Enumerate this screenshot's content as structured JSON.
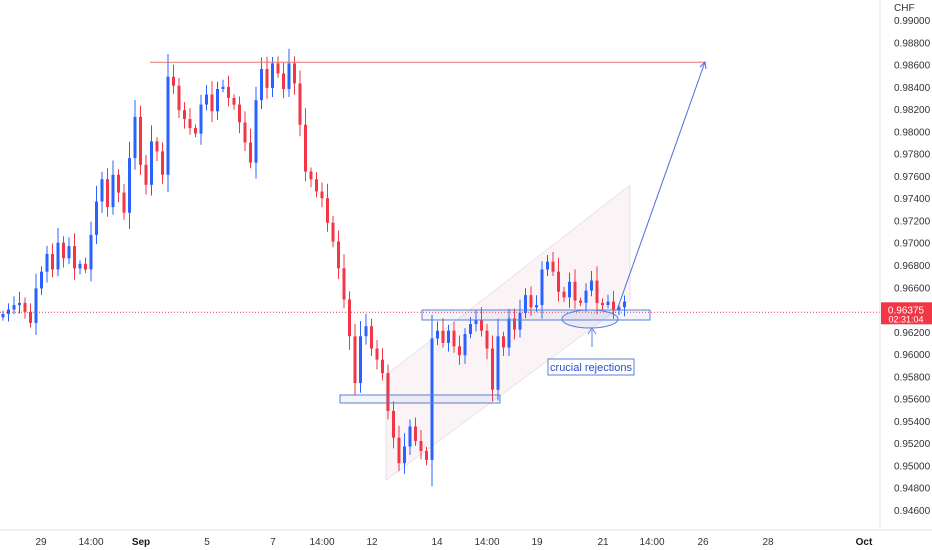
{
  "chart_data": {
    "type": "candlestick",
    "currency_label": "CHF",
    "colors": {
      "up": "#2962ff",
      "down": "#f23645",
      "resistance_line": "#e57373",
      "zone": "#5b7fd6",
      "projection": "#4a6fd4",
      "current_price": "#f23645"
    },
    "y_axis": {
      "min": 0.9448,
      "max": 0.991,
      "ticks": [
        "0.99000",
        "0.98800",
        "0.98600",
        "0.98400",
        "0.98200",
        "0.98000",
        "0.97800",
        "0.97600",
        "0.97400",
        "0.97200",
        "0.97000",
        "0.96800",
        "0.96600",
        "0.96400",
        "0.96200",
        "0.96000",
        "0.95800",
        "0.95600",
        "0.95400",
        "0.95200",
        "0.95000",
        "0.94800",
        "0.94600"
      ]
    },
    "x_axis": {
      "ticks": [
        {
          "label": "29",
          "bold": false
        },
        {
          "label": "14:00",
          "bold": false
        },
        {
          "label": "Sep",
          "bold": true
        },
        {
          "label": "5",
          "bold": false
        },
        {
          "label": "7",
          "bold": false
        },
        {
          "label": "14:00",
          "bold": false
        },
        {
          "label": "12",
          "bold": false
        },
        {
          "label": "14",
          "bold": false
        },
        {
          "label": "14:00",
          "bold": false
        },
        {
          "label": "19",
          "bold": false
        },
        {
          "label": "21",
          "bold": false
        },
        {
          "label": "14:00",
          "bold": false
        },
        {
          "label": "26",
          "bold": false
        },
        {
          "label": "28",
          "bold": false
        },
        {
          "label": "Oct",
          "bold": true
        }
      ]
    },
    "current_price": {
      "value": "0.96375",
      "countdown": "02:31:04",
      "level": 0.96375
    },
    "resistance_level": 0.9862,
    "annotation": "crucial rejections",
    "closes": [
      0.9636,
      0.964,
      0.9644,
      0.9646,
      0.9638,
      0.9628,
      0.9659,
      0.9674,
      0.969,
      0.9676,
      0.97,
      0.9686,
      0.9697,
      0.9677,
      0.9681,
      0.9676,
      0.9707,
      0.9737,
      0.9757,
      0.9732,
      0.9761,
      0.9745,
      0.9727,
      0.9776,
      0.9813,
      0.977,
      0.9752,
      0.9791,
      0.9782,
      0.9761,
      0.9849,
      0.9841,
      0.9819,
      0.9811,
      0.9803,
      0.9798,
      0.9824,
      0.9833,
      0.9818,
      0.9838,
      0.984,
      0.983,
      0.9824,
      0.9808,
      0.979,
      0.9772,
      0.9828,
      0.9856,
      0.9839,
      0.9861,
      0.9852,
      0.9838,
      0.9861,
      0.9843,
      0.9806,
      0.9764,
      0.9757,
      0.9746,
      0.974,
      0.9718,
      0.9701,
      0.9677,
      0.9649,
      0.9616,
      0.9574,
      0.9616,
      0.9625,
      0.9605,
      0.9595,
      0.9583,
      0.9549,
      0.9525,
      0.9502,
      0.9517,
      0.9535,
      0.9522,
      0.9513,
      0.9505,
      0.9614,
      0.9621,
      0.961,
      0.9621,
      0.9607,
      0.9599,
      0.9618,
      0.9627,
      0.9631,
      0.9621,
      0.9605,
      0.9568,
      0.9616,
      0.9606,
      0.9632,
      0.9622,
      0.9637,
      0.9653,
      0.9642,
      0.9644,
      0.9676,
      0.9683,
      0.9674,
      0.9656,
      0.9651,
      0.9665,
      0.9648,
      0.9646,
      0.9657,
      0.9666,
      0.9646,
      0.9644,
      0.9647,
      0.9639,
      0.9642,
      0.9647
    ]
  }
}
